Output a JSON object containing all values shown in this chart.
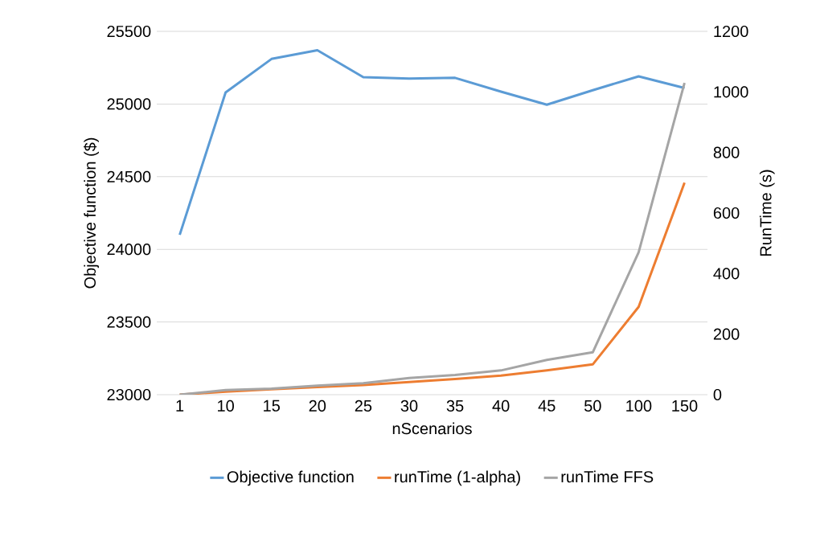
{
  "chart_data": {
    "type": "line",
    "xlabel": "nScenarios",
    "ylabel": "Objective function ($)",
    "y2label": "RunTime (s)",
    "categories": [
      "1",
      "10",
      "15",
      "20",
      "25",
      "30",
      "35",
      "40",
      "45",
      "50",
      "100",
      "150"
    ],
    "series": [
      {
        "name": "Objective function",
        "color": "#5b9bd5",
        "values": [
          24100,
          25080,
          25310,
          25370,
          25185,
          25175,
          25180,
          25085,
          24995,
          25095,
          25190,
          25110
        ]
      },
      {
        "name": "runTime (1-alpha)",
        "color": "#ed7d31",
        "axis": "y2",
        "values": [
          0,
          10,
          18,
          25,
          32,
          42,
          52,
          63,
          80,
          100,
          290,
          700
        ]
      },
      {
        "name": "runTime FFS",
        "color": "#a5a5a5",
        "axis": "y2",
        "values": [
          0,
          15,
          20,
          30,
          38,
          55,
          65,
          80,
          115,
          140,
          470,
          1030
        ]
      }
    ],
    "ylim": [
      23000,
      25500
    ],
    "yticks": [
      23000,
      23500,
      24000,
      24500,
      25000,
      25500
    ],
    "y2lim": [
      0,
      1200
    ],
    "y2ticks": [
      0,
      200,
      400,
      600,
      800,
      1000,
      1200
    ],
    "grid": "y",
    "legend": "bottom",
    "marker": "none",
    "line_style": "solid"
  }
}
